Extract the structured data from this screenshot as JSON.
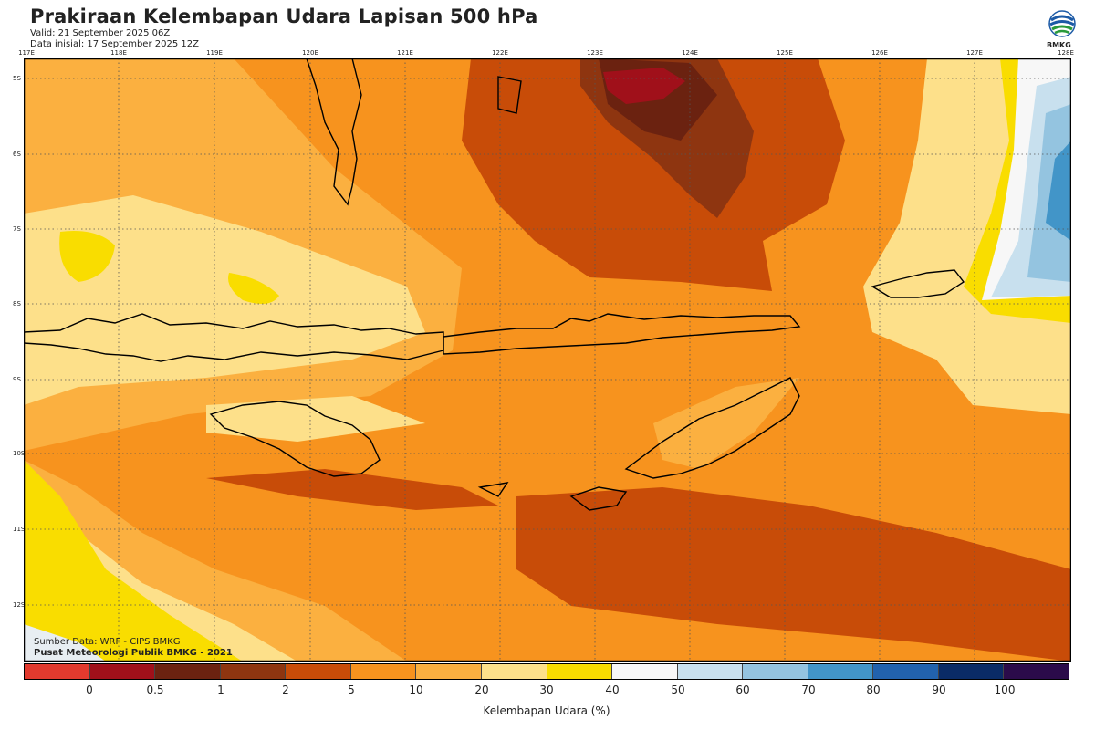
{
  "header": {
    "title": "Prakiraan Kelembapan Udara Lapisan 500 hPa",
    "valid": "Valid: 21 September 2025 06Z",
    "init": "Data inisial: 17 September 2025 12Z",
    "logo_text": "BMKG"
  },
  "map": {
    "lon_labels": [
      "117E",
      "118E",
      "119E",
      "120E",
      "121E",
      "122E",
      "123E",
      "124E",
      "125E",
      "126E",
      "127E",
      "128E"
    ],
    "lat_labels": [
      "5S",
      "6S",
      "7S",
      "8S",
      "9S",
      "10S",
      "11S",
      "12S"
    ],
    "grid": "dotted"
  },
  "source": {
    "line1": "Sumber Data: WRF - CIPS BMKG",
    "line2": "Pusat Meteorologi Publik BMKG - 2021"
  },
  "colorbar": {
    "title": "Kelembapan Udara (%)",
    "ticks": [
      "0",
      "0.5",
      "1",
      "2",
      "5",
      "10",
      "20",
      "30",
      "40",
      "50",
      "60",
      "70",
      "80",
      "90",
      "100"
    ],
    "colors": [
      "#e23a2e",
      "#a0101a",
      "#6b2210",
      "#8e3510",
      "#c84c08",
      "#f7931e",
      "#fbb040",
      "#fde08a",
      "#f9dd00",
      "#f7f7f7",
      "#c8e0ee",
      "#94c4e0",
      "#4295c8",
      "#2262ad",
      "#0a2b66",
      "#2b0b4a"
    ]
  }
}
